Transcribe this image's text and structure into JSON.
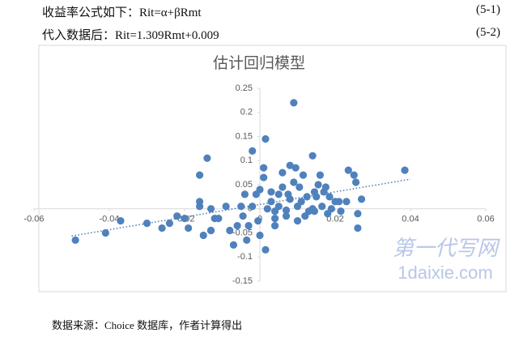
{
  "document": {
    "lines": [
      {
        "text": "收益率公式如下：Rit=α+βRmt",
        "number": "(5-1)"
      },
      {
        "text": "代入数据后：Rit=1.309Rmt+0.009",
        "number": "(5-2)"
      }
    ],
    "source": "数据来源：Choice 数据库，作者计算得出",
    "watermark": [
      "第一代写网",
      "1daixie.com"
    ]
  },
  "chart_data": {
    "type": "scatter",
    "title": "估计回归模型",
    "color": "#4f81bd",
    "xlim": [
      -0.06,
      0.06
    ],
    "ylim": [
      -0.15,
      0.25
    ],
    "xticks": [
      -0.06,
      -0.04,
      -0.02,
      0,
      0.02,
      0.04,
      0.06
    ],
    "yticks": [
      -0.15,
      -0.1,
      -0.05,
      0,
      0.05,
      0.1,
      0.15,
      0.2,
      0.25
    ],
    "grid": false,
    "trendline": {
      "slope": 1.309,
      "intercept": 0.009,
      "x_range": [
        -0.05,
        0.04
      ],
      "color": "#4f81bd"
    },
    "x": [
      -0.049,
      -0.041,
      -0.037,
      -0.03,
      -0.026,
      -0.024,
      -0.022,
      -0.02,
      -0.019,
      -0.016,
      -0.016,
      -0.016,
      -0.014,
      -0.015,
      -0.013,
      -0.013,
      -0.013,
      -0.012,
      -0.011,
      -0.008,
      -0.009,
      -0.007,
      -0.006,
      -0.005,
      -0.0045,
      -0.0035,
      -0.004,
      -0.003,
      -0.002,
      -0.002,
      -0.001,
      -0.0005,
      0,
      0,
      0.001,
      0.0015,
      0.0015,
      0.001,
      0.002,
      0.003,
      0.003,
      0.004,
      0.004,
      0.005,
      0.005,
      0.006,
      0.006,
      0.007,
      0.0075,
      0.008,
      0.008,
      0.009,
      0.009,
      0.0095,
      0.01,
      0.01,
      0.0105,
      0.011,
      0.0115,
      0.012,
      0.0125,
      0.013,
      0.014,
      0.014,
      0.0145,
      0.015,
      0.0155,
      0.016,
      0.0165,
      0.017,
      0.0175,
      0.018,
      0.0185,
      0.019,
      0.02,
      0.021,
      0.0215,
      0.023,
      0.0235,
      0.025,
      0.0255,
      0.026,
      0.026,
      0.027,
      0.0385,
      0.0145,
      0.007,
      0.004
    ],
    "y": [
      -0.065,
      -0.05,
      -0.025,
      -0.03,
      -0.04,
      -0.03,
      -0.015,
      -0.02,
      -0.04,
      0.015,
      0.005,
      0.07,
      0.105,
      -0.055,
      -0.045,
      -0.045,
      0,
      -0.02,
      -0.02,
      -0.045,
      0.005,
      -0.075,
      -0.035,
      0.005,
      -0.015,
      -0.065,
      0.03,
      -0.035,
      0.12,
      0.005,
      0.03,
      -0.025,
      0.04,
      -0.055,
      0.065,
      0.145,
      -0.085,
      0.085,
      0,
      0.015,
      0.035,
      -0.005,
      -0.02,
      0.03,
      0.005,
      0.075,
      0.045,
      -0.015,
      0.03,
      0.09,
      0.02,
      0.055,
      0.22,
      0.085,
      0.005,
      -0.025,
      0.045,
      0.015,
      0.07,
      -0.015,
      0.025,
      -0.005,
      0.11,
      0,
      0.035,
      0.025,
      0.05,
      0.07,
      0.005,
      0.035,
      0.045,
      -0.01,
      0.025,
      0,
      0.015,
      0.015,
      -0.005,
      0.015,
      0.08,
      0.07,
      0.055,
      -0.01,
      -0.04,
      0.02,
      0.08,
      -0.005,
      -0.003,
      -0.035
    ]
  }
}
